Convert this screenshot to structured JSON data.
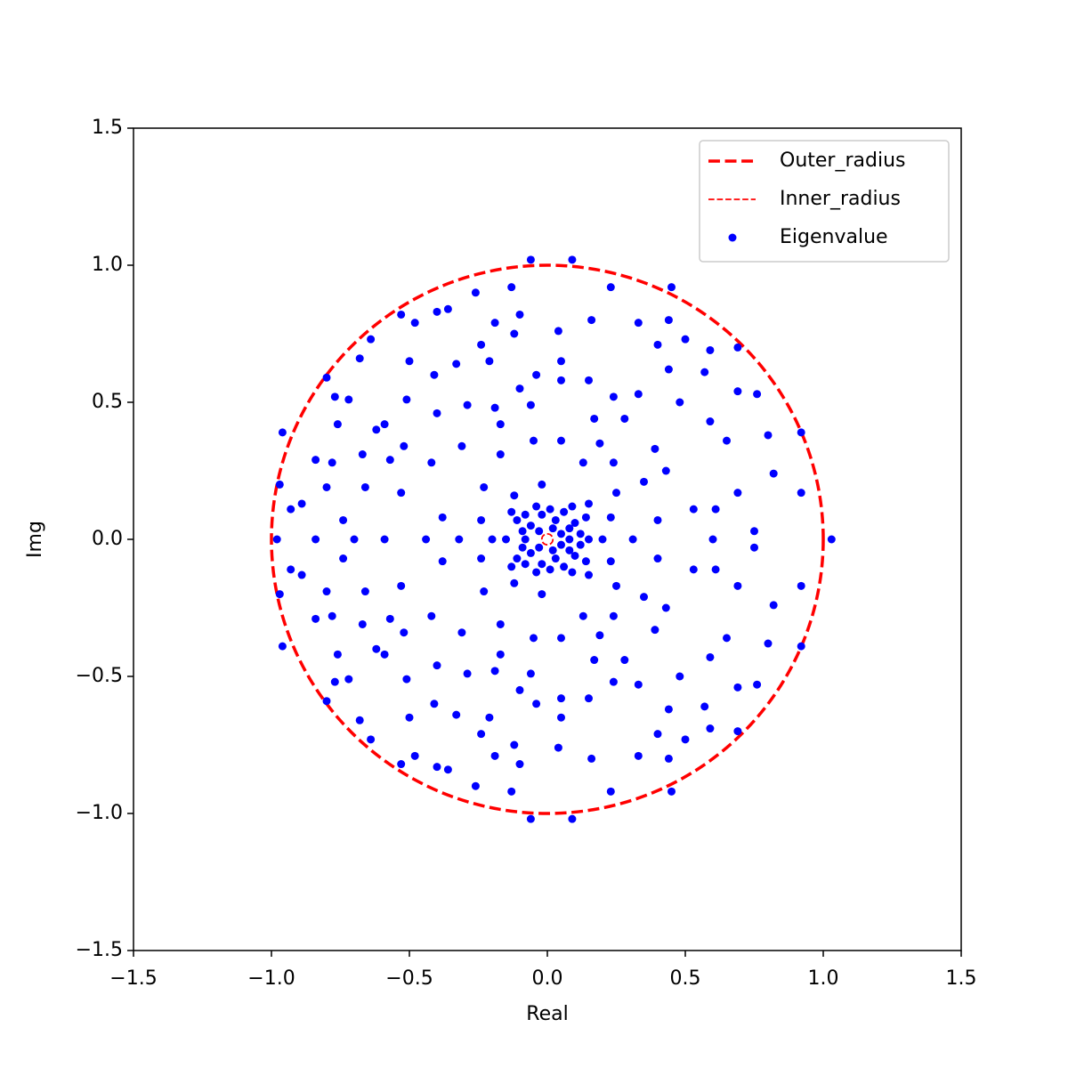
{
  "chart_data": {
    "type": "scatter",
    "x_label": "Real",
    "y_label": "Img",
    "xlim": [
      -1.5,
      1.5
    ],
    "ylim": [
      -1.5,
      1.5
    ],
    "xticks": [
      {
        "value": -1.5,
        "label": "−1.5"
      },
      {
        "value": -1.0,
        "label": "−1.0"
      },
      {
        "value": -0.5,
        "label": "−0.5"
      },
      {
        "value": 0,
        "label": "0.0"
      },
      0.5,
      {
        "value": 1.0,
        "label": "1.0"
      },
      1.5
    ],
    "yticks": [
      {
        "value": -1.5,
        "label": "−1.5"
      },
      {
        "value": -1.0,
        "label": "−1.0"
      },
      {
        "value": -0.5,
        "label": "−0.5"
      },
      {
        "value": 0,
        "label": "0.0"
      },
      0.5,
      {
        "value": 1.0,
        "label": "1.0"
      },
      1.5
    ],
    "grid": false,
    "legend": "upper right",
    "series": [
      {
        "name": "Outer_radius",
        "color": "#ff0000",
        "radius": 1,
        "linestyle": "dashed",
        "linewidth": 3.5
      },
      {
        "name": "Inner_radius",
        "color": "#ff0000",
        "radius": 0.02,
        "linestyle": "dashed",
        "linewidth": 1.8
      },
      {
        "name": "Eigenvalue",
        "color": "#0000ff",
        "x": [
          -0.06,
          0.09,
          0.45,
          0.23,
          -0.13,
          -0.26,
          -0.53,
          -0.4,
          -0.36,
          -0.48,
          -0.64,
          -0.8,
          -0.68,
          -0.96,
          -0.97,
          0.92,
          0.92,
          0.69,
          0.76,
          0.69,
          0.44,
          0.33,
          0.16,
          0.04,
          -0.1,
          -0.19,
          -0.12,
          -0.24,
          -0.33,
          -0.5,
          -0.77,
          -0.72,
          -0.84,
          -0.93,
          -0.89,
          -0.76,
          -0.78,
          -0.8,
          -0.66,
          -0.67,
          -0.62,
          -0.59,
          -0.57,
          -0.74,
          0.5,
          0.4,
          0.59,
          0.57,
          0.44,
          0.33,
          0.48,
          0.59,
          0.65,
          0.8,
          0.82,
          0.69,
          0.75,
          0.53,
          0.61,
          0.4,
          0.43,
          0.35,
          0.28,
          0.17,
          0.15,
          0.24,
          0.05,
          -0.04,
          0.05,
          -0.1,
          -0.21,
          -0.41,
          -0.51,
          -0.4,
          -0.29,
          -0.19,
          -0.06,
          -0.17,
          -0.05,
          0.05,
          -0.17,
          -0.31,
          -0.42,
          -0.52,
          -0.53,
          -0.38,
          -0.24,
          0.19,
          0.24,
          0.25,
          0.39,
          0.23,
          0.15,
          0.13,
          -0.02,
          -0.12,
          -0.23,
          0.05,
          0.08,
          0.1,
          0.03,
          -0.02,
          -0.06,
          -0.09,
          -0.11,
          0.12,
          0.06,
          -0.04,
          0.02,
          -0.03,
          0.14,
          -0.13,
          0.09,
          0.01,
          -0.08,
          -0.98,
          -0.84,
          -0.7,
          -0.59,
          -0.44,
          -0.32,
          0.31,
          0.6,
          1.03,
          -0.15,
          0.15,
          -0.08,
          0.08,
          0.2,
          -0.2,
          -0.06,
          0.09,
          0.45,
          0.23,
          -0.13,
          -0.26,
          -0.53,
          -0.4,
          -0.36,
          -0.48,
          -0.64,
          -0.8,
          -0.68,
          -0.96,
          -0.97,
          0.92,
          0.92,
          0.69,
          0.76,
          0.69,
          0.44,
          0.33,
          0.16,
          0.04,
          -0.1,
          -0.19,
          -0.12,
          -0.24,
          -0.33,
          -0.5,
          -0.77,
          -0.72,
          -0.84,
          -0.93,
          -0.89,
          -0.76,
          -0.78,
          -0.8,
          -0.66,
          -0.67,
          -0.62,
          -0.59,
          -0.57,
          -0.74,
          0.5,
          0.4,
          0.59,
          0.57,
          0.44,
          0.33,
          0.48,
          0.59,
          0.65,
          0.8,
          0.82,
          0.69,
          0.75,
          0.53,
          0.61,
          0.4,
          0.43,
          0.35,
          0.28,
          0.17,
          0.15,
          0.24,
          0.05,
          -0.04,
          0.05,
          -0.1,
          -0.21,
          -0.41,
          -0.51,
          -0.4,
          -0.29,
          -0.19,
          -0.06,
          -0.17,
          -0.05,
          0.05,
          -0.17,
          -0.31,
          -0.42,
          -0.52,
          -0.53,
          -0.38,
          -0.24,
          0.19,
          0.24,
          0.25,
          0.39,
          0.23,
          0.15,
          0.13,
          -0.02,
          -0.12,
          -0.23,
          0.05,
          0.08,
          0.1,
          0.03,
          -0.02,
          -0.06,
          -0.09,
          -0.11,
          0.12,
          0.06,
          -0.04,
          0.02,
          -0.03,
          0.14,
          -0.13,
          0.09,
          0.01,
          -0.08
        ],
        "y": [
          1.02,
          1.02,
          0.92,
          0.92,
          0.92,
          0.9,
          0.82,
          0.83,
          0.84,
          0.79,
          0.73,
          0.59,
          0.66,
          0.39,
          0.2,
          0.39,
          0.17,
          0.54,
          0.53,
          0.7,
          0.8,
          0.79,
          0.8,
          0.76,
          0.82,
          0.79,
          0.75,
          0.71,
          0.64,
          0.65,
          0.52,
          0.51,
          0.29,
          0.11,
          0.13,
          0.42,
          0.28,
          0.19,
          0.19,
          0.31,
          0.4,
          0.42,
          0.29,
          0.07,
          0.73,
          0.71,
          0.69,
          0.61,
          0.62,
          0.53,
          0.5,
          0.43,
          0.36,
          0.38,
          0.24,
          0.17,
          0.03,
          0.11,
          0.11,
          0.07,
          0.25,
          0.21,
          0.44,
          0.44,
          0.58,
          0.52,
          0.65,
          0.6,
          0.58,
          0.55,
          0.65,
          0.6,
          0.51,
          0.46,
          0.49,
          0.48,
          0.49,
          0.42,
          0.36,
          0.36,
          0.31,
          0.34,
          0.28,
          0.34,
          0.17,
          0.08,
          0.07,
          0.35,
          0.28,
          0.17,
          0.33,
          0.08,
          0.13,
          0.28,
          0.2,
          0.16,
          0.19,
          0.02,
          0.04,
          0.06,
          0.07,
          0.09,
          0.05,
          0.03,
          0.07,
          0.02,
          0.1,
          0.12,
          0.04,
          0.03,
          0.08,
          0.1,
          0.12,
          0.11,
          0.09,
          0,
          0,
          0,
          0,
          0,
          0,
          0,
          0,
          0,
          0,
          0,
          0,
          0,
          0,
          0,
          -1.02,
          -1.02,
          -0.92,
          -0.92,
          -0.92,
          -0.9,
          -0.82,
          -0.83,
          -0.84,
          -0.79,
          -0.73,
          -0.59,
          -0.66,
          -0.39,
          -0.2,
          -0.39,
          -0.17,
          -0.54,
          -0.53,
          -0.7,
          -0.8,
          -0.79,
          -0.8,
          -0.76,
          -0.82,
          -0.79,
          -0.75,
          -0.71,
          -0.64,
          -0.65,
          -0.52,
          -0.51,
          -0.29,
          -0.11,
          -0.13,
          -0.42,
          -0.28,
          -0.19,
          -0.19,
          -0.31,
          -0.4,
          -0.42,
          -0.29,
          -0.07,
          -0.73,
          -0.71,
          -0.69,
          -0.61,
          -0.62,
          -0.53,
          -0.5,
          -0.43,
          -0.36,
          -0.38,
          -0.24,
          -0.17,
          -0.03,
          -0.11,
          -0.11,
          -0.07,
          -0.25,
          -0.21,
          -0.44,
          -0.44,
          -0.58,
          -0.52,
          -0.65,
          -0.6,
          -0.58,
          -0.55,
          -0.65,
          -0.6,
          -0.51,
          -0.46,
          -0.49,
          -0.48,
          -0.49,
          -0.42,
          -0.36,
          -0.36,
          -0.31,
          -0.34,
          -0.28,
          -0.34,
          -0.17,
          -0.08,
          -0.07,
          -0.35,
          -0.28,
          -0.17,
          -0.33,
          -0.08,
          -0.13,
          -0.28,
          -0.2,
          -0.16,
          -0.19,
          -0.02,
          -0.04,
          -0.06,
          -0.07,
          -0.09,
          -0.05,
          -0.03,
          -0.07,
          -0.02,
          -0.1,
          -0.12,
          -0.04,
          -0.03,
          -0.08,
          -0.1,
          -0.12,
          -0.11,
          -0.09
        ]
      }
    ]
  }
}
